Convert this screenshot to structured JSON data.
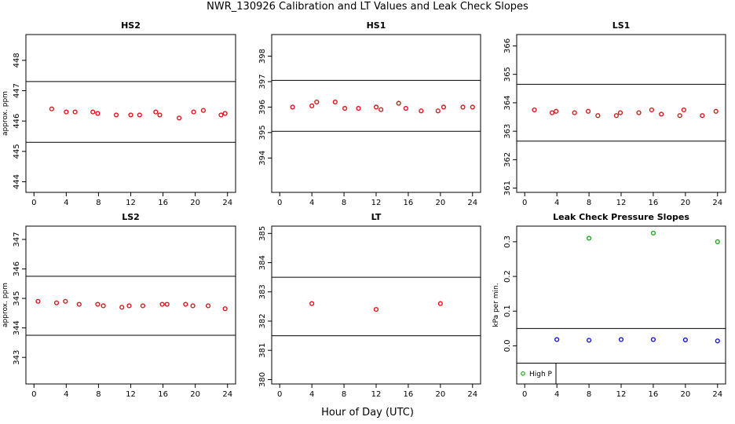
{
  "figure": {
    "title": "NWR_130926  Calibration and LT Values and Leak Check Slopes",
    "xlabel": "Hour of Day (UTC)"
  },
  "colors": {
    "cal": "#e0141c",
    "high": "#1ba81b",
    "low": "#1414e0",
    "axis": "#000000"
  },
  "chart_data": [
    {
      "type": "scatter",
      "title": "HS2",
      "ylabel": "approx. ppm",
      "xlim": [
        -1,
        25
      ],
      "ylim": [
        443.65,
        448.85
      ],
      "xticks": [
        0,
        4,
        8,
        12,
        16,
        20,
        24
      ],
      "yticks": [
        444,
        445,
        446,
        447,
        448
      ],
      "hlines": [
        447.3,
        445.3
      ],
      "series": [
        {
          "color": "cal",
          "x": [
            2.2,
            4.0,
            5.1,
            7.3,
            7.9,
            10.2,
            12.0,
            13.1,
            15.1,
            15.6,
            18.0,
            19.8,
            21.0,
            23.2,
            23.7
          ],
          "y": [
            446.4,
            446.3,
            446.3,
            446.3,
            446.25,
            446.2,
            446.2,
            446.2,
            446.3,
            446.2,
            446.1,
            446.3,
            446.35,
            446.2,
            446.25
          ]
        }
      ]
    },
    {
      "type": "scatter",
      "title": "HS1",
      "ylabel": "",
      "xlim": [
        -1,
        25
      ],
      "ylim": [
        392.65,
        398.85
      ],
      "xticks": [
        0,
        4,
        8,
        12,
        16,
        20,
        24
      ],
      "yticks": [
        394,
        395,
        396,
        397,
        398
      ],
      "hlines": [
        397.05,
        395.05
      ],
      "series": [
        {
          "color": "cal",
          "x": [
            1.6,
            4.0,
            4.6,
            6.9,
            8.1,
            9.8,
            12.0,
            12.6,
            14.8,
            15.7,
            17.6,
            19.7,
            20.4,
            22.8,
            24.0
          ],
          "y": [
            396.0,
            396.05,
            396.2,
            396.2,
            395.95,
            395.95,
            396.0,
            395.9,
            396.15,
            395.95,
            395.85,
            395.85,
            396.0,
            396.0,
            396.0
          ]
        }
      ]
    },
    {
      "type": "scatter",
      "title": "LS1",
      "ylabel": "",
      "xlim": [
        -1,
        25
      ],
      "ylim": [
        360.85,
        366.4
      ],
      "xticks": [
        0,
        4,
        8,
        12,
        16,
        20,
        24
      ],
      "yticks": [
        361,
        362,
        363,
        364,
        365,
        366
      ],
      "hlines": [
        364.65,
        362.65
      ],
      "series": [
        {
          "color": "cal",
          "x": [
            1.2,
            3.4,
            3.9,
            6.2,
            7.9,
            9.1,
            11.4,
            11.9,
            14.2,
            15.8,
            17.0,
            19.3,
            19.8,
            22.1,
            23.8
          ],
          "y": [
            363.75,
            363.65,
            363.7,
            363.65,
            363.7,
            363.55,
            363.55,
            363.65,
            363.65,
            363.75,
            363.6,
            363.55,
            363.75,
            363.55,
            363.7
          ]
        }
      ]
    },
    {
      "type": "scatter",
      "title": "LS2",
      "ylabel": "approx. ppm",
      "xlim": [
        -1,
        25
      ],
      "ylim": [
        342.1,
        347.45
      ],
      "xticks": [
        0,
        4,
        8,
        12,
        16,
        20,
        24
      ],
      "yticks": [
        343,
        344,
        345,
        346,
        347
      ],
      "hlines": [
        345.75,
        343.75
      ],
      "series": [
        {
          "color": "cal",
          "x": [
            0.5,
            2.8,
            3.9,
            5.6,
            7.9,
            8.6,
            10.9,
            11.8,
            13.5,
            15.9,
            16.5,
            18.8,
            19.7,
            21.6,
            23.7
          ],
          "y": [
            344.9,
            344.85,
            344.9,
            344.8,
            344.8,
            344.75,
            344.7,
            344.75,
            344.75,
            344.8,
            344.8,
            344.8,
            344.75,
            344.75,
            344.65
          ]
        }
      ]
    },
    {
      "type": "scatter",
      "title": "LT",
      "ylabel": "",
      "xlim": [
        -1,
        25
      ],
      "ylim": [
        379.85,
        385.25
      ],
      "xticks": [
        0,
        4,
        8,
        12,
        16,
        20,
        24
      ],
      "yticks": [
        380,
        381,
        382,
        383,
        384,
        385
      ],
      "hlines": [
        383.5,
        381.5
      ],
      "series": [
        {
          "color": "cal",
          "x": [
            4.0,
            12.0,
            20.0
          ],
          "y": [
            382.6,
            382.4,
            382.6
          ]
        }
      ]
    },
    {
      "type": "scatter",
      "title": "Leak Check Pressure Slopes",
      "ylabel": "kPa per min.",
      "xlim": [
        -1,
        25
      ],
      "ylim": [
        -0.11,
        0.345
      ],
      "xticks": [
        0,
        4,
        8,
        12,
        16,
        20,
        24
      ],
      "yticks": [
        0.0,
        0.1,
        0.2,
        0.3
      ],
      "ytick_labels": [
        "0.0",
        "0.1",
        "0.2",
        "0.3"
      ],
      "hlines": [
        0.05,
        -0.05
      ],
      "legend": {
        "placement": "bottom-left",
        "entries": [
          {
            "label": "High P",
            "color": "high"
          }
        ]
      },
      "series": [
        {
          "name": "High P",
          "color": "high",
          "x": [
            8,
            16,
            24
          ],
          "y": [
            0.31,
            0.325,
            0.3
          ]
        },
        {
          "color": "low",
          "x": [
            4,
            8,
            12,
            16,
            20,
            24
          ],
          "y": [
            0.018,
            0.016,
            0.018,
            0.018,
            0.017,
            0.014
          ]
        }
      ]
    }
  ]
}
